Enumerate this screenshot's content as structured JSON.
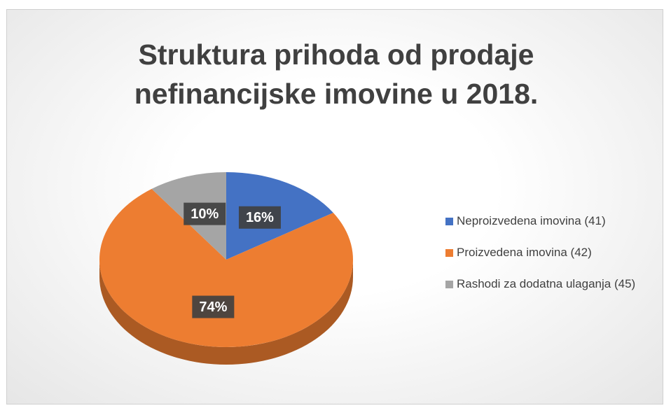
{
  "chart_data": {
    "type": "pie",
    "title": "Struktura prihoda od prodaje nefinancijske imovine u 2018.",
    "categories": [
      "Neproizvedena imovina (41)",
      "Proizvedena imovina (42)",
      "Rashodi za dodatna ulaganja (45)"
    ],
    "values": [
      16,
      74,
      10
    ],
    "value_labels": [
      "16%",
      "74%",
      "10%"
    ],
    "colors": [
      "#4472c4",
      "#ed7d31",
      "#a5a5a5"
    ],
    "legend": "right"
  }
}
